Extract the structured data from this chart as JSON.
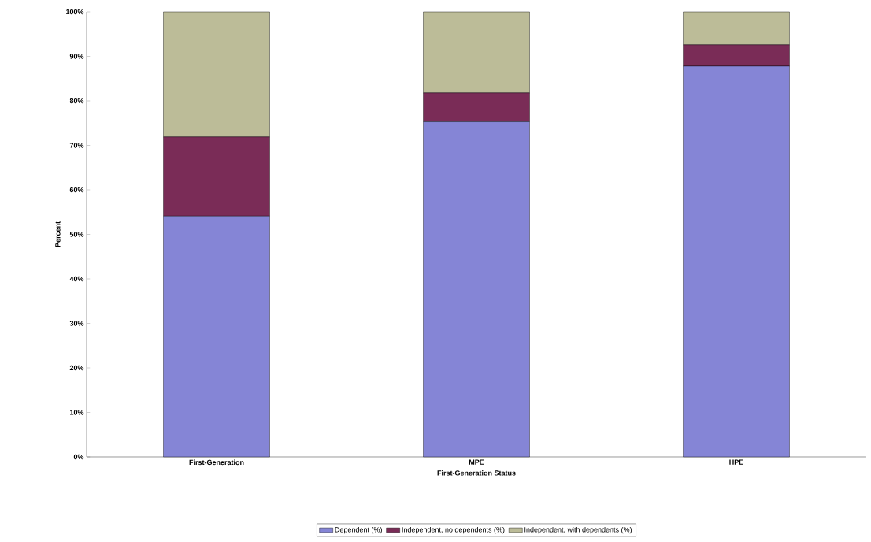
{
  "chart_data": {
    "type": "bar",
    "stacked": true,
    "xlabel": "First-Generation Status",
    "ylabel": "Percent",
    "categories": [
      "First-Generation",
      "MPE",
      "HPE"
    ],
    "series": [
      {
        "name": "Dependent (%)",
        "color": "#8585d6",
        "values": [
          54.1,
          75.3,
          87.8
        ]
      },
      {
        "name": "Independent, no dependents (%)",
        "color": "#7a2c57",
        "values": [
          17.8,
          6.5,
          4.8
        ]
      },
      {
        "name": "Independent, with dependents (%)",
        "color": "#bcbc98",
        "values": [
          28.1,
          18.2,
          7.4
        ]
      }
    ],
    "ylim": [
      0,
      100
    ],
    "yticks": [
      {
        "value": 0,
        "label": "0%"
      },
      {
        "value": 10,
        "label": "10%"
      },
      {
        "value": 20,
        "label": "20%"
      },
      {
        "value": 30,
        "label": "30%"
      },
      {
        "value": 40,
        "label": "40%"
      },
      {
        "value": 50,
        "label": "50%"
      },
      {
        "value": 60,
        "label": "60%"
      },
      {
        "value": 70,
        "label": "70%"
      },
      {
        "value": 80,
        "label": "80%"
      },
      {
        "value": 90,
        "label": "90%"
      },
      {
        "value": 100,
        "label": "100%"
      }
    ],
    "legend": "bottom",
    "grid": false
  }
}
